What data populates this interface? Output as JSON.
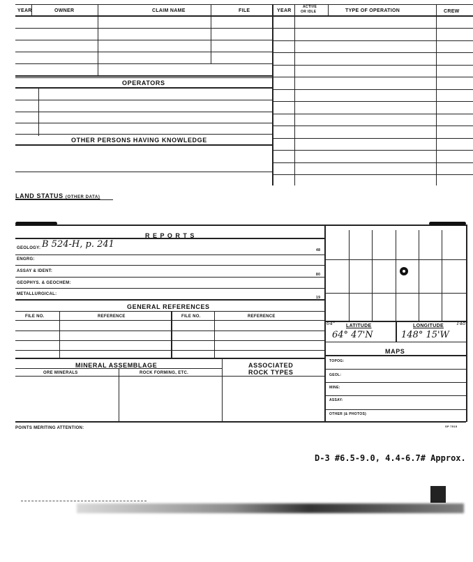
{
  "top_table": {
    "headers": [
      "YEAR",
      "OWNER",
      "CLAIM NAME",
      "FILE"
    ],
    "right_headers": [
      "YEAR",
      "ACTIVE",
      "OR IDLE",
      "TYPE OF OPERATION",
      "CREW"
    ],
    "operators_label": "OPERATORS",
    "other_persons_label": "OTHER PERSONS HAVING KNOWLEDGE",
    "land_status_label": "LAND STATUS",
    "land_status_sub": "(OTHER DATA)"
  },
  "reports": {
    "title": "R E P O R T S",
    "rows": [
      {
        "label": "GEOLOGY:",
        "value": "B 524-H, p. 241",
        "num": "48"
      },
      {
        "label": "ENGRG:",
        "value": "",
        "num": ""
      },
      {
        "label": "ASSAY & IDENT:",
        "value": "",
        "num": "80"
      },
      {
        "label": "GEOPHYS. & GEOCHEM:",
        "value": "",
        "num": ""
      },
      {
        "label": "METALLURGICAL:",
        "value": "",
        "num": "19"
      }
    ]
  },
  "general_references": {
    "title": "GENERAL REFERENCES",
    "columns": [
      "FILE NO.",
      "REFERENCE",
      "FILE NO.",
      "REFERENCE"
    ]
  },
  "mineral_assemblage": {
    "title": "MINERAL ASSEMBLAGE",
    "columns": [
      "ORE MINERALS",
      "ROCK FORMING, ETC."
    ],
    "associated": [
      "ASSOCIATED",
      "ROCK TYPES"
    ]
  },
  "location": {
    "lat_deg_note": "64°",
    "latitude_label": "LATITUDE",
    "latitude_value": "64° 47'N",
    "longitude_label": "LONGITUDE",
    "long_note": "148°",
    "longitude_value": "148° 15'W"
  },
  "maps": {
    "title": "MAPS",
    "rows": [
      "TOPOG:",
      "GEOL:",
      "MINE:",
      "ASSAY:",
      "OTHER (& PHOTOS)"
    ]
  },
  "points_label": "POINTS MERITING ATTENTION:",
  "form_number": "SP 7515",
  "typed_note": "D-3 #6.5-9.0, 4.4-6.7# Approx."
}
